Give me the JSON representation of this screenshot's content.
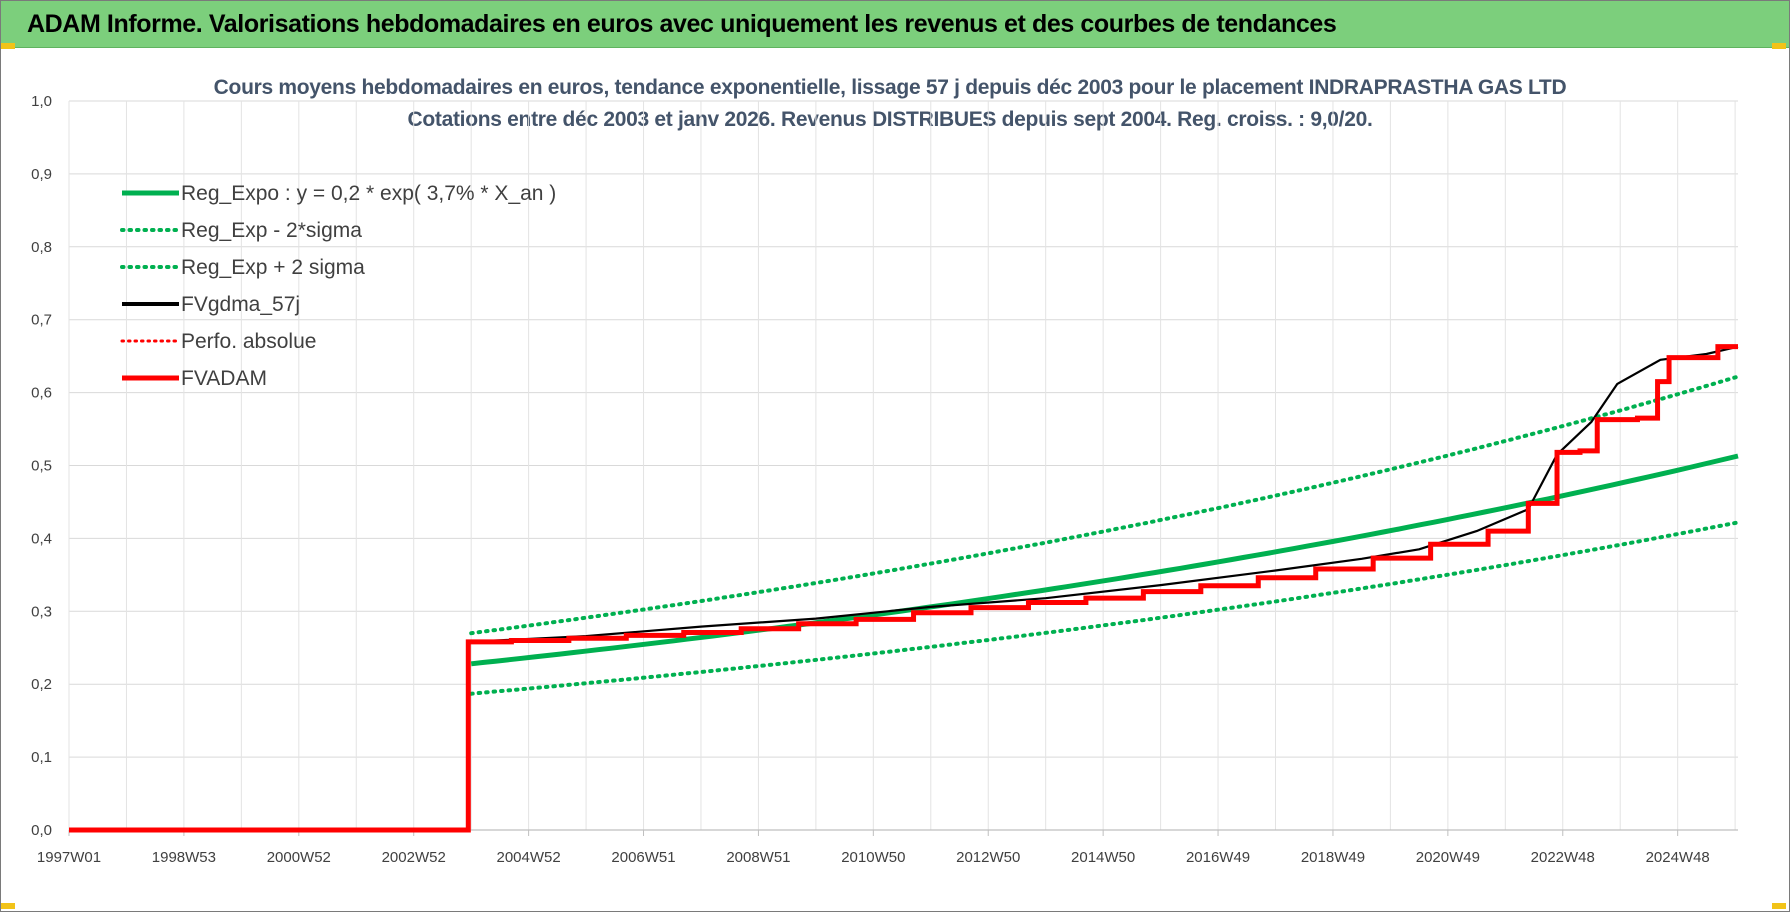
{
  "banner": {
    "title": "ADAM Informe. Valorisations hebdomadaires en euros avec uniquement les revenus et des courbes de tendances"
  },
  "chart_data": {
    "type": "line",
    "title_line1": "Cours moyens hebdomadaires en euros, tendance exponentielle, lissage 57 j depuis déc 2003 pour le placement INDRAPRASTHA GAS LTD",
    "title_line2": "Cotations entre déc 2003 et janv 2026. Revenus DISTRIBUES depuis sept 2004. Reg. croiss. : 9,0/20.",
    "xlabel": "",
    "ylabel": "",
    "x_tick_labels": [
      "1997W01",
      "1998W53",
      "2000W52",
      "2002W52",
      "2004W52",
      "2006W51",
      "2008W51",
      "2010W50",
      "2012W50",
      "2014W50",
      "2016W49",
      "2018W49",
      "2020W49",
      "2022W48",
      "2024W48"
    ],
    "y_tick_labels": [
      "0,0",
      "0,1",
      "0,2",
      "0,3",
      "0,4",
      "0,5",
      "0,6",
      "0,7",
      "0,8",
      "0,9",
      "1,0"
    ],
    "ylim": [
      0,
      1.0
    ],
    "xlim_years": [
      1997.0,
      2026.05
    ],
    "grid": true,
    "legend_position": "top-left",
    "colors": {
      "green": "#00b050",
      "black": "#000000",
      "red": "#ff0000"
    },
    "series": [
      {
        "name": "Reg_Expo : y = 0,2 * exp( 3,7% *  X_an )",
        "style": "solid-green",
        "x": [
          2004.0,
          2026.05
        ],
        "y": [
          0.228,
          0.513
        ]
      },
      {
        "name": "Reg_Exp - 2*sigma",
        "style": "dotted-green",
        "x": [
          2004.0,
          2026.05
        ],
        "y": [
          0.187,
          0.422
        ]
      },
      {
        "name": "Reg_Exp + 2 sigma",
        "style": "dotted-green",
        "x": [
          2004.0,
          2026.05
        ],
        "y": [
          0.27,
          0.622
        ]
      },
      {
        "name": "FVgdma_57j",
        "style": "solid-black-thin",
        "x": [
          1997.0,
          2003.93,
          2003.95,
          2006.0,
          2008.0,
          2010.0,
          2012.0,
          2014.0,
          2016.0,
          2018.0,
          2019.5,
          2020.5,
          2021.5,
          2022.4,
          2022.9,
          2023.5,
          2023.95,
          2024.7,
          2025.5,
          2026.05
        ],
        "y": [
          0.0,
          0.0,
          0.258,
          0.266,
          0.279,
          0.29,
          0.306,
          0.318,
          0.336,
          0.356,
          0.372,
          0.385,
          0.41,
          0.44,
          0.515,
          0.56,
          0.612,
          0.645,
          0.653,
          0.663
        ]
      },
      {
        "name": "Perfo. absolue",
        "style": "dotted-red",
        "x": [],
        "y": []
      },
      {
        "name": "FVADAM",
        "style": "thick-red-step",
        "steps": [
          [
            1997.0,
            0.0
          ],
          [
            2003.95,
            0.258
          ],
          [
            2004.7,
            0.26
          ],
          [
            2005.7,
            0.263
          ],
          [
            2006.7,
            0.267
          ],
          [
            2007.7,
            0.271
          ],
          [
            2008.7,
            0.276
          ],
          [
            2009.7,
            0.283
          ],
          [
            2010.7,
            0.289
          ],
          [
            2011.7,
            0.298
          ],
          [
            2012.7,
            0.305
          ],
          [
            2013.7,
            0.312
          ],
          [
            2014.7,
            0.318
          ],
          [
            2015.7,
            0.327
          ],
          [
            2016.7,
            0.335
          ],
          [
            2017.7,
            0.346
          ],
          [
            2018.7,
            0.358
          ],
          [
            2019.7,
            0.373
          ],
          [
            2020.7,
            0.392
          ],
          [
            2021.7,
            0.41
          ],
          [
            2022.4,
            0.448
          ],
          [
            2022.9,
            0.518
          ],
          [
            2023.3,
            0.52
          ],
          [
            2023.6,
            0.563
          ],
          [
            2024.3,
            0.565
          ],
          [
            2024.65,
            0.615
          ],
          [
            2024.85,
            0.648
          ],
          [
            2025.7,
            0.663
          ]
        ],
        "end_x": 2026.05
      }
    ]
  }
}
